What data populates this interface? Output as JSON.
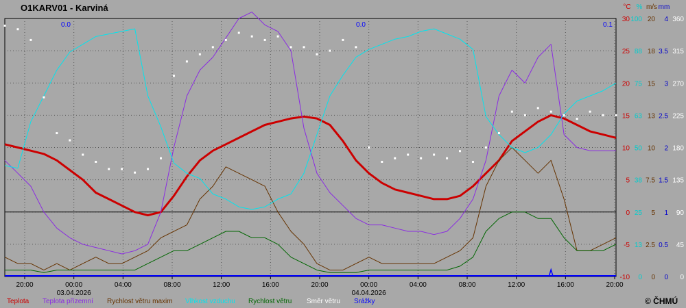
{
  "chart_data": {
    "type": "line",
    "title": "O1KARV01 - Karviná",
    "copyright": "© ČHMÚ",
    "x": {
      "ticks": [
        "20:00",
        "00:00",
        "04:00",
        "08:00",
        "12:00",
        "16:00",
        "20:00",
        "00:00",
        "04:00",
        "08:00",
        "12:00",
        "16:00",
        "20:00"
      ],
      "dates": [
        "03.04.2026",
        "04.04.2026"
      ]
    },
    "axes": [
      {
        "unit": "°C",
        "ticks": [
          "30",
          "25",
          "20",
          "15",
          "10",
          "5",
          "0",
          "-5",
          "-10"
        ],
        "range": [
          -10,
          30
        ],
        "color": "#cc0000"
      },
      {
        "unit": "%",
        "ticks": [
          "100",
          "88",
          "75",
          "63",
          "50",
          "38",
          "25",
          "13",
          "0"
        ],
        "range": [
          0,
          100
        ],
        "color": "#00cccc"
      },
      {
        "unit": "m/s",
        "ticks": [
          "20",
          "18",
          "15",
          "13",
          "10",
          "7.5",
          "5",
          "2.5",
          "0"
        ],
        "range": [
          0,
          20
        ],
        "color": "#663300"
      },
      {
        "unit": "mm",
        "ticks": [
          "4",
          "3.5",
          "3",
          "2.5",
          "2",
          "1.5",
          "1",
          "0.5",
          "0"
        ],
        "range": [
          0,
          4
        ],
        "color": "#0000cc"
      },
      {
        "unit": "",
        "ticks": [
          "360",
          "315",
          "270",
          "225",
          "180",
          "135",
          "90",
          "45",
          "0"
        ],
        "range": [
          0,
          360
        ],
        "color": "#ffffff"
      }
    ],
    "precip_labels": [
      "0.0",
      "0.0",
      "0.1"
    ],
    "series": [
      {
        "name": "Teplota",
        "color": "#cc0000",
        "axis": "°C",
        "values": [
          10.5,
          10,
          9.5,
          9,
          8,
          6.5,
          5,
          3,
          2,
          1,
          0,
          -0.5,
          0,
          2.5,
          5.5,
          8,
          9.5,
          10.5,
          11.5,
          12.5,
          13.5,
          14,
          14.5,
          14.8,
          14.5,
          13.5,
          11,
          8,
          6,
          4.5,
          3.5,
          3,
          2.5,
          2,
          2,
          2.5,
          4,
          6,
          8,
          11,
          12.5,
          14,
          15,
          14.5,
          13.5,
          12.5,
          12,
          11.5
        ]
      },
      {
        "name": "Teplota přízemní",
        "color": "#8a2be2",
        "axis": "°C",
        "values": [
          8,
          6,
          4,
          0,
          -2.5,
          -4,
          -5,
          -5.5,
          -6,
          -6.5,
          -6,
          -5,
          0,
          10,
          18,
          22,
          24,
          27,
          30,
          31,
          29,
          28,
          25,
          13,
          6,
          3,
          1,
          -1,
          -2,
          -2,
          -2.5,
          -3,
          -3,
          -3.5,
          -3,
          -1,
          2,
          8,
          18,
          22,
          20,
          24,
          26,
          12,
          10,
          9.5,
          9.5,
          9.5
        ]
      },
      {
        "name": "Rychlost větru maxim",
        "color": "#663300",
        "axis": "m/s",
        "values": [
          1.5,
          1,
          1,
          0.5,
          1,
          0.5,
          1,
          1.5,
          1,
          1,
          1.5,
          2,
          3,
          3.5,
          4,
          6,
          7,
          8.5,
          8,
          7.5,
          7,
          5,
          3.5,
          2.5,
          1,
          0.5,
          0.5,
          1,
          1.5,
          1,
          1,
          1,
          1,
          1,
          1.5,
          2,
          3,
          7,
          9,
          10,
          9,
          8,
          9,
          6,
          2,
          2,
          2.5,
          3
        ]
      },
      {
        "name": "Vlhkost vzduchu",
        "color": "#00e5ee",
        "axis": "%",
        "values": [
          43,
          42,
          60,
          70,
          80,
          87,
          90,
          93,
          94,
          95,
          96,
          70,
          58,
          44,
          40,
          38,
          32,
          30,
          27,
          26,
          27,
          30,
          32,
          40,
          55,
          70,
          78,
          85,
          88,
          90,
          92,
          93,
          95,
          96,
          94,
          92,
          88,
          62,
          55,
          50,
          48,
          50,
          55,
          63,
          68,
          70,
          72,
          75
        ]
      },
      {
        "name": "Rychlost větru",
        "color": "#006600",
        "axis": "m/s",
        "values": [
          0.5,
          0.5,
          0.5,
          0.3,
          0.5,
          0.5,
          0.5,
          0.5,
          0.5,
          0.5,
          0.5,
          1,
          1.5,
          2,
          2,
          2.5,
          3,
          3.5,
          3.5,
          3,
          3,
          2.5,
          1.5,
          1,
          0.5,
          0.3,
          0.3,
          0.3,
          0.5,
          0.5,
          0.5,
          0.5,
          0.5,
          0.5,
          0.5,
          0.8,
          1.5,
          3.5,
          4.5,
          5,
          5,
          4.5,
          4.5,
          3,
          2,
          2,
          2,
          2.5
        ]
      },
      {
        "name": "Směr větru",
        "color": "#ffffff",
        "axis": "",
        "style": "points",
        "values": [
          350,
          345,
          330,
          250,
          200,
          190,
          170,
          160,
          150,
          150,
          145,
          150,
          165,
          280,
          300,
          310,
          320,
          330,
          340,
          335,
          330,
          335,
          320,
          320,
          310,
          315,
          330,
          320,
          180,
          160,
          165,
          170,
          165,
          170,
          165,
          175,
          160,
          180,
          200,
          230,
          225,
          235,
          230,
          225,
          220,
          230,
          225,
          225
        ]
      },
      {
        "name": "Srážky",
        "color": "#0000ff",
        "axis": "mm",
        "style": "bars",
        "values": [
          0,
          0,
          0,
          0,
          0,
          0,
          0,
          0,
          0,
          0,
          0,
          0,
          0,
          0,
          0,
          0,
          0,
          0,
          0,
          0,
          0,
          0,
          0,
          0,
          0,
          0,
          0,
          0,
          0,
          0,
          0,
          0,
          0,
          0,
          0,
          0,
          0,
          0,
          0,
          0,
          0,
          0,
          0.1,
          0,
          0,
          0,
          0,
          0
        ]
      }
    ],
    "grid": true
  }
}
